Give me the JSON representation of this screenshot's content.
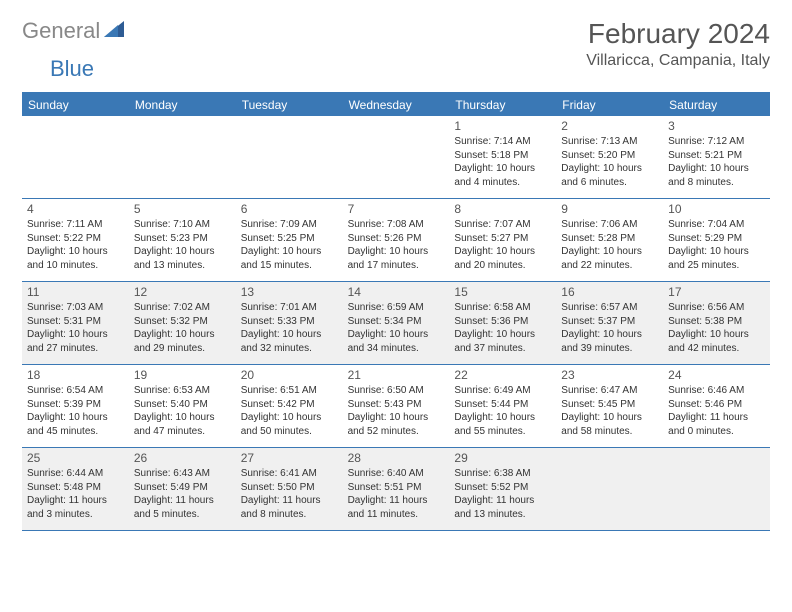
{
  "brand": {
    "part1": "General",
    "part2": "Blue"
  },
  "title": "February 2024",
  "location": "Villaricca, Campania, Italy",
  "colors": {
    "accent": "#3a78b5",
    "shade": "#f0f0f0",
    "text": "#333333",
    "muted": "#555555",
    "logo_gray": "#888888",
    "white": "#ffffff"
  },
  "day_names": [
    "Sunday",
    "Monday",
    "Tuesday",
    "Wednesday",
    "Thursday",
    "Friday",
    "Saturday"
  ],
  "weeks": [
    [
      {
        "date": "",
        "sunrise": "",
        "sunset": "",
        "daylight": ""
      },
      {
        "date": "",
        "sunrise": "",
        "sunset": "",
        "daylight": ""
      },
      {
        "date": "",
        "sunrise": "",
        "sunset": "",
        "daylight": ""
      },
      {
        "date": "",
        "sunrise": "",
        "sunset": "",
        "daylight": ""
      },
      {
        "date": "1",
        "sunrise": "Sunrise: 7:14 AM",
        "sunset": "Sunset: 5:18 PM",
        "daylight": "Daylight: 10 hours and 4 minutes."
      },
      {
        "date": "2",
        "sunrise": "Sunrise: 7:13 AM",
        "sunset": "Sunset: 5:20 PM",
        "daylight": "Daylight: 10 hours and 6 minutes."
      },
      {
        "date": "3",
        "sunrise": "Sunrise: 7:12 AM",
        "sunset": "Sunset: 5:21 PM",
        "daylight": "Daylight: 10 hours and 8 minutes."
      }
    ],
    [
      {
        "date": "4",
        "sunrise": "Sunrise: 7:11 AM",
        "sunset": "Sunset: 5:22 PM",
        "daylight": "Daylight: 10 hours and 10 minutes."
      },
      {
        "date": "5",
        "sunrise": "Sunrise: 7:10 AM",
        "sunset": "Sunset: 5:23 PM",
        "daylight": "Daylight: 10 hours and 13 minutes."
      },
      {
        "date": "6",
        "sunrise": "Sunrise: 7:09 AM",
        "sunset": "Sunset: 5:25 PM",
        "daylight": "Daylight: 10 hours and 15 minutes."
      },
      {
        "date": "7",
        "sunrise": "Sunrise: 7:08 AM",
        "sunset": "Sunset: 5:26 PM",
        "daylight": "Daylight: 10 hours and 17 minutes."
      },
      {
        "date": "8",
        "sunrise": "Sunrise: 7:07 AM",
        "sunset": "Sunset: 5:27 PM",
        "daylight": "Daylight: 10 hours and 20 minutes."
      },
      {
        "date": "9",
        "sunrise": "Sunrise: 7:06 AM",
        "sunset": "Sunset: 5:28 PM",
        "daylight": "Daylight: 10 hours and 22 minutes."
      },
      {
        "date": "10",
        "sunrise": "Sunrise: 7:04 AM",
        "sunset": "Sunset: 5:29 PM",
        "daylight": "Daylight: 10 hours and 25 minutes."
      }
    ],
    [
      {
        "date": "11",
        "sunrise": "Sunrise: 7:03 AM",
        "sunset": "Sunset: 5:31 PM",
        "daylight": "Daylight: 10 hours and 27 minutes."
      },
      {
        "date": "12",
        "sunrise": "Sunrise: 7:02 AM",
        "sunset": "Sunset: 5:32 PM",
        "daylight": "Daylight: 10 hours and 29 minutes."
      },
      {
        "date": "13",
        "sunrise": "Sunrise: 7:01 AM",
        "sunset": "Sunset: 5:33 PM",
        "daylight": "Daylight: 10 hours and 32 minutes."
      },
      {
        "date": "14",
        "sunrise": "Sunrise: 6:59 AM",
        "sunset": "Sunset: 5:34 PM",
        "daylight": "Daylight: 10 hours and 34 minutes."
      },
      {
        "date": "15",
        "sunrise": "Sunrise: 6:58 AM",
        "sunset": "Sunset: 5:36 PM",
        "daylight": "Daylight: 10 hours and 37 minutes."
      },
      {
        "date": "16",
        "sunrise": "Sunrise: 6:57 AM",
        "sunset": "Sunset: 5:37 PM",
        "daylight": "Daylight: 10 hours and 39 minutes."
      },
      {
        "date": "17",
        "sunrise": "Sunrise: 6:56 AM",
        "sunset": "Sunset: 5:38 PM",
        "daylight": "Daylight: 10 hours and 42 minutes."
      }
    ],
    [
      {
        "date": "18",
        "sunrise": "Sunrise: 6:54 AM",
        "sunset": "Sunset: 5:39 PM",
        "daylight": "Daylight: 10 hours and 45 minutes."
      },
      {
        "date": "19",
        "sunrise": "Sunrise: 6:53 AM",
        "sunset": "Sunset: 5:40 PM",
        "daylight": "Daylight: 10 hours and 47 minutes."
      },
      {
        "date": "20",
        "sunrise": "Sunrise: 6:51 AM",
        "sunset": "Sunset: 5:42 PM",
        "daylight": "Daylight: 10 hours and 50 minutes."
      },
      {
        "date": "21",
        "sunrise": "Sunrise: 6:50 AM",
        "sunset": "Sunset: 5:43 PM",
        "daylight": "Daylight: 10 hours and 52 minutes."
      },
      {
        "date": "22",
        "sunrise": "Sunrise: 6:49 AM",
        "sunset": "Sunset: 5:44 PM",
        "daylight": "Daylight: 10 hours and 55 minutes."
      },
      {
        "date": "23",
        "sunrise": "Sunrise: 6:47 AM",
        "sunset": "Sunset: 5:45 PM",
        "daylight": "Daylight: 10 hours and 58 minutes."
      },
      {
        "date": "24",
        "sunrise": "Sunrise: 6:46 AM",
        "sunset": "Sunset: 5:46 PM",
        "daylight": "Daylight: 11 hours and 0 minutes."
      }
    ],
    [
      {
        "date": "25",
        "sunrise": "Sunrise: 6:44 AM",
        "sunset": "Sunset: 5:48 PM",
        "daylight": "Daylight: 11 hours and 3 minutes."
      },
      {
        "date": "26",
        "sunrise": "Sunrise: 6:43 AM",
        "sunset": "Sunset: 5:49 PM",
        "daylight": "Daylight: 11 hours and 5 minutes."
      },
      {
        "date": "27",
        "sunrise": "Sunrise: 6:41 AM",
        "sunset": "Sunset: 5:50 PM",
        "daylight": "Daylight: 11 hours and 8 minutes."
      },
      {
        "date": "28",
        "sunrise": "Sunrise: 6:40 AM",
        "sunset": "Sunset: 5:51 PM",
        "daylight": "Daylight: 11 hours and 11 minutes."
      },
      {
        "date": "29",
        "sunrise": "Sunrise: 6:38 AM",
        "sunset": "Sunset: 5:52 PM",
        "daylight": "Daylight: 11 hours and 13 minutes."
      },
      {
        "date": "",
        "sunrise": "",
        "sunset": "",
        "daylight": ""
      },
      {
        "date": "",
        "sunrise": "",
        "sunset": "",
        "daylight": ""
      }
    ]
  ],
  "shaded_weeks": [
    2,
    4
  ]
}
